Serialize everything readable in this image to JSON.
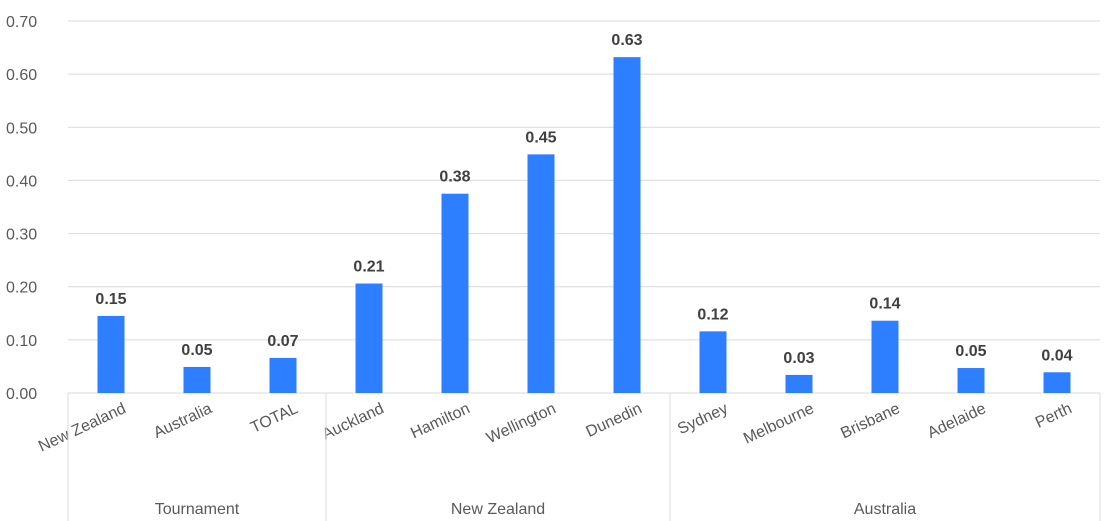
{
  "chart_data": {
    "type": "bar",
    "categories": [
      "New Zealand",
      "Australia",
      "TOTAL",
      "Auckland",
      "Hamilton",
      "Wellington",
      "Dunedin",
      "Sydney",
      "Melbourne",
      "Brisbane",
      "Adelaide",
      "Perth"
    ],
    "values": [
      0.145,
      0.049,
      0.066,
      0.206,
      0.375,
      0.449,
      0.632,
      0.116,
      0.034,
      0.136,
      0.047,
      0.039
    ],
    "data_labels": [
      "0.15",
      "0.05",
      "0.07",
      "0.21",
      "0.38",
      "0.45",
      "0.63",
      "0.12",
      "0.03",
      "0.14",
      "0.05",
      "0.04"
    ],
    "groups": [
      {
        "label": "Tournament",
        "count": 3
      },
      {
        "label": "New Zealand",
        "count": 4
      },
      {
        "label": "Australia",
        "count": 5
      }
    ],
    "ylim": [
      0,
      0.7
    ],
    "yticks": [
      "0.00",
      "0.10",
      "0.20",
      "0.30",
      "0.40",
      "0.50",
      "0.60",
      "0.70"
    ],
    "grid": true,
    "legend": "none",
    "bar_color": "#2E7FFF",
    "grid_color": "#D9D9D9",
    "title": "",
    "xlabel": "",
    "ylabel": ""
  }
}
